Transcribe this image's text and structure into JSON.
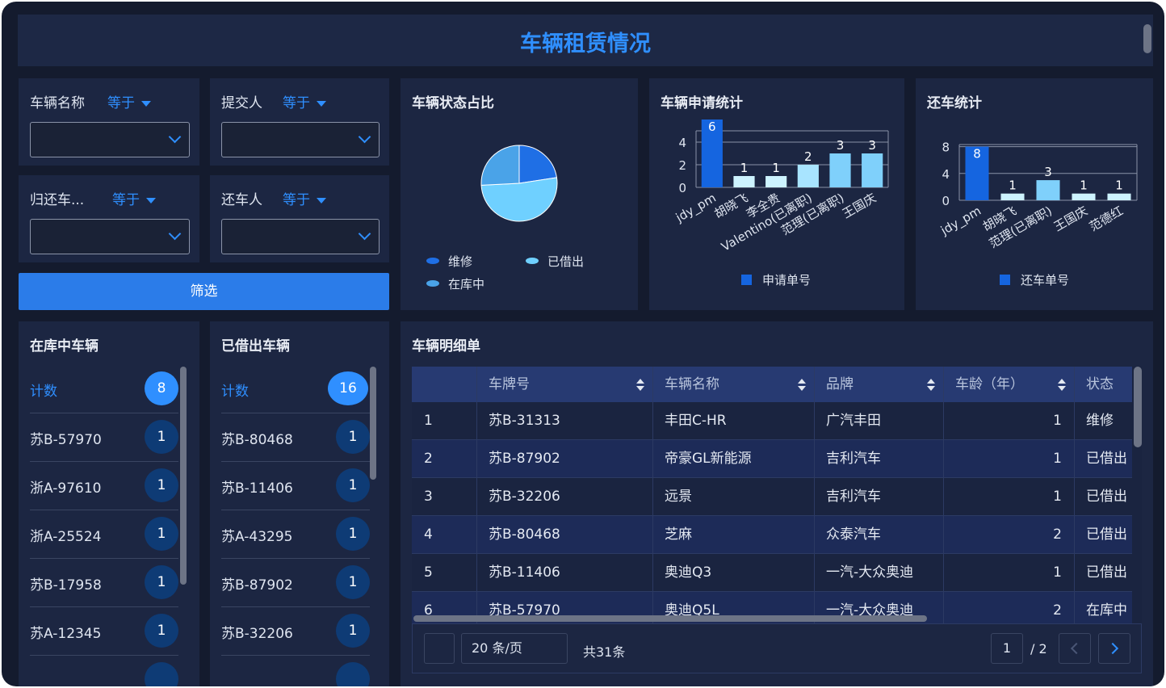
{
  "header": {
    "title": "车辆租赁情况"
  },
  "filters": [
    {
      "label": "车辆名称",
      "operator": "等于"
    },
    {
      "label": "提交人",
      "operator": "等于"
    },
    {
      "label": "归还车...",
      "operator": "等于"
    },
    {
      "label": "还车人",
      "operator": "等于"
    }
  ],
  "filter_button": "筛选",
  "status_pie": {
    "type": "pie",
    "title": "车辆状态占比",
    "categories": [
      "维修",
      "已借出",
      "在库中"
    ],
    "values": [
      7,
      16,
      8
    ],
    "colors": [
      "#1f6fe5",
      "#6fd0ff",
      "#4aa3e8"
    ]
  },
  "apply_chart": {
    "type": "bar",
    "title": "车辆申请统计",
    "series_name": "申请单号",
    "legend_color": "#1565e0",
    "categories": [
      "jdy_pm",
      "胡晓飞",
      "李全贵",
      "Valentino(已离职)",
      "范理(已离职)",
      "王国庆"
    ],
    "values": [
      6,
      1,
      1,
      2,
      3,
      3
    ],
    "colors": [
      "#1565e0",
      "#cdf3ff",
      "#cdf3ff",
      "#a8e4ff",
      "#7fd0fb",
      "#7fd0fb"
    ],
    "ylim": [
      0,
      6
    ],
    "yticks": [
      0,
      2,
      4
    ]
  },
  "return_chart": {
    "type": "bar",
    "title": "还车统计",
    "series_name": "还车单号",
    "legend_color": "#1565e0",
    "categories": [
      "jdy_pm",
      "胡晓飞",
      "范理(已离职)",
      "王国庆",
      "范德红"
    ],
    "values": [
      8,
      1,
      3,
      1,
      1
    ],
    "colors": [
      "#1565e0",
      "#cdf3ff",
      "#7fd0fb",
      "#cdf3ff",
      "#cdf3ff"
    ],
    "ylim": [
      0,
      10
    ],
    "yticks": [
      0,
      4,
      8
    ]
  },
  "lists": [
    {
      "title": "在库中车辆",
      "count_label": "计数",
      "count": 8,
      "items": [
        {
          "plate": "苏B-57970",
          "count": 1
        },
        {
          "plate": "浙A-97610",
          "count": 1
        },
        {
          "plate": "浙A-25524",
          "count": 1
        },
        {
          "plate": "苏B-17958",
          "count": 1
        },
        {
          "plate": "苏A-12345",
          "count": 1
        }
      ]
    },
    {
      "title": "已借出车辆",
      "count_label": "计数",
      "count": 16,
      "items": [
        {
          "plate": "苏B-80468",
          "count": 1
        },
        {
          "plate": "苏B-11406",
          "count": 1
        },
        {
          "plate": "苏A-43295",
          "count": 1
        },
        {
          "plate": "苏B-87902",
          "count": 1
        },
        {
          "plate": "苏B-32206",
          "count": 1
        }
      ]
    }
  ],
  "table": {
    "title": "车辆明细单",
    "columns": [
      "车牌号",
      "车辆名称",
      "品牌",
      "车龄（年）",
      "状态"
    ],
    "rows": [
      [
        1,
        "苏B-31313",
        "丰田C-HR",
        "广汽丰田",
        1,
        "维修"
      ],
      [
        2,
        "苏B-87902",
        "帝豪GL新能源",
        "吉利汽车",
        1,
        "已借出"
      ],
      [
        3,
        "苏B-32206",
        "远景",
        "吉利汽车",
        1,
        "已借出"
      ],
      [
        4,
        "苏B-80468",
        "芝麻",
        "众泰汽车",
        2,
        "已借出"
      ],
      [
        5,
        "苏B-11406",
        "奥迪Q3",
        "一汽-大众奥迪",
        1,
        "已借出"
      ],
      [
        6,
        "苏B-57970",
        "奥迪Q5L",
        "一汽-大众奥迪",
        2,
        "在库中"
      ]
    ],
    "page_size": "20 条/页",
    "total": "共31条",
    "current_page": 1,
    "page_count": "/ 2"
  }
}
